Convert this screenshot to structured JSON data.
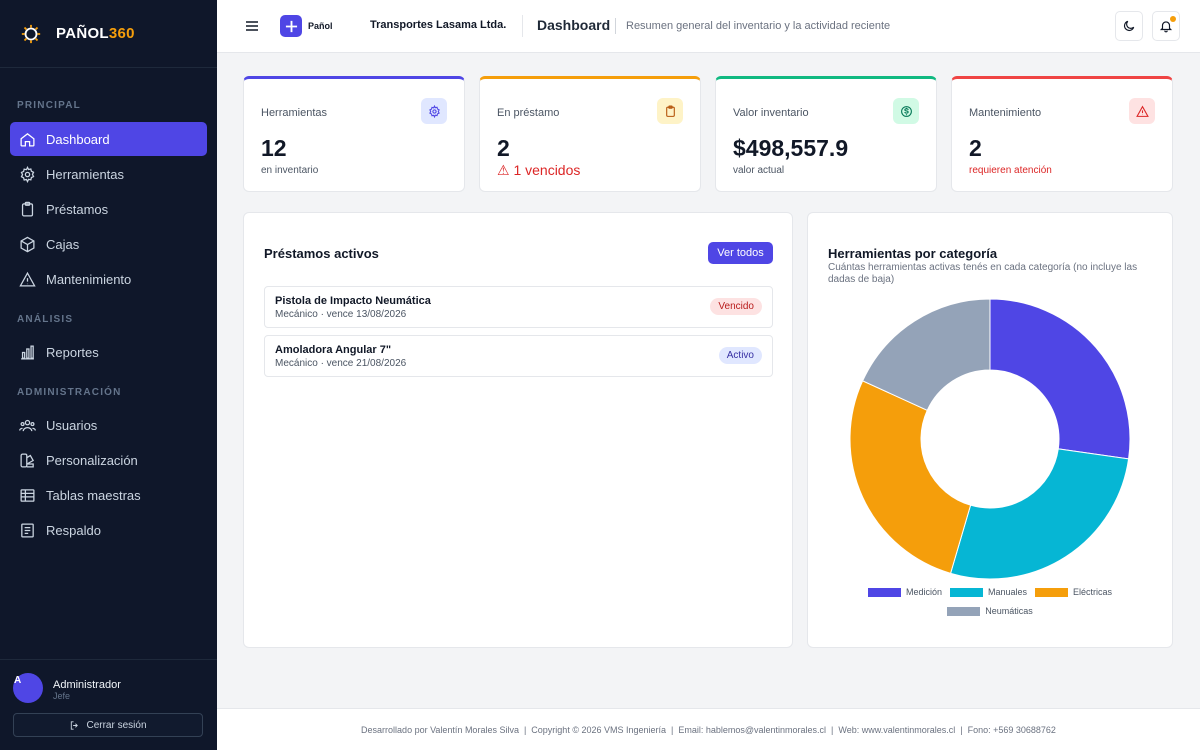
{
  "brand": {
    "name_main": "PAÑOL",
    "name_accent": "360"
  },
  "sidebar": {
    "sections": [
      {
        "label": "PRINCIPAL"
      },
      {
        "label": "ANÁLISIS"
      },
      {
        "label": "ADMINISTRACIÓN"
      }
    ],
    "items": [
      {
        "label": "Dashboard",
        "icon": "home-icon",
        "active": true
      },
      {
        "label": "Herramientas",
        "icon": "gear-icon"
      },
      {
        "label": "Préstamos",
        "icon": "clipboard-icon"
      },
      {
        "label": "Cajas",
        "icon": "box-icon"
      },
      {
        "label": "Mantenimiento",
        "icon": "warning-icon"
      },
      {
        "label": "Reportes",
        "icon": "bar-chart-icon"
      },
      {
        "label": "Usuarios",
        "icon": "users-icon"
      },
      {
        "label": "Personalización",
        "icon": "palette-icon"
      },
      {
        "label": "Tablas maestras",
        "icon": "table-icon"
      },
      {
        "label": "Respaldo",
        "icon": "backup-icon"
      }
    ],
    "user": {
      "initial": "A",
      "name": "Administrador",
      "role": "Jefe"
    },
    "logout_label": "Cerrar sesión"
  },
  "header": {
    "app_label": "Pañol",
    "company": "Transportes Lasama Ltda.",
    "title": "Dashboard",
    "subtitle": "Resumen general del inventario y la actividad reciente",
    "has_notification": true
  },
  "stats": [
    {
      "label": "Herramientas",
      "value": "12",
      "sub": "en inventario",
      "icon": "gear-icon",
      "color": "#4f46e5"
    },
    {
      "label": "En préstamo",
      "value": "2",
      "sub": "⚠ 1 vencidos",
      "icon": "clipboard-icon",
      "color": "#f59e0b"
    },
    {
      "label": "Valor inventario",
      "value": "$498,557.9",
      "sub": "valor actual",
      "icon": "dollar-icon",
      "color": "#10b981"
    },
    {
      "label": "Mantenimiento",
      "value": "2",
      "sub": "requieren atención",
      "icon": "warning-icon",
      "color": "#ef4444"
    }
  ],
  "loans": {
    "title": "Préstamos activos",
    "view_all": "Ver todos",
    "items": [
      {
        "name": "Pistola de Impacto Neumática",
        "meta": "Mecánico · vence 13/08/2026",
        "status": "Vencido"
      },
      {
        "name": "Amoladora Angular 7\"",
        "meta": "Mecánico · vence 21/08/2026",
        "status": "Activo"
      }
    ]
  },
  "chart_panel": {
    "title": "Herramientas por categoría",
    "subtitle": "Cuántas herramientas activas tenés en cada categoría (no incluye las dadas de baja)"
  },
  "chart_data": {
    "type": "pie",
    "categories": [
      "Medición",
      "Manuales",
      "Eléctricas",
      "Neumáticas"
    ],
    "values": [
      3,
      3,
      3,
      2
    ],
    "colors": [
      "#4f46e5",
      "#06b6d4",
      "#f59e0b",
      "#94a3b8"
    ],
    "legend": "bottom"
  },
  "footer": {
    "text": "Desarrollado por Valentín Morales Silva  |  Copyright © 2026 VMS Ingeniería  |  Email: hablemos@valentinmorales.cl  |  Web: www.valentinmorales.cl  |  Fono: +569 30688762"
  }
}
